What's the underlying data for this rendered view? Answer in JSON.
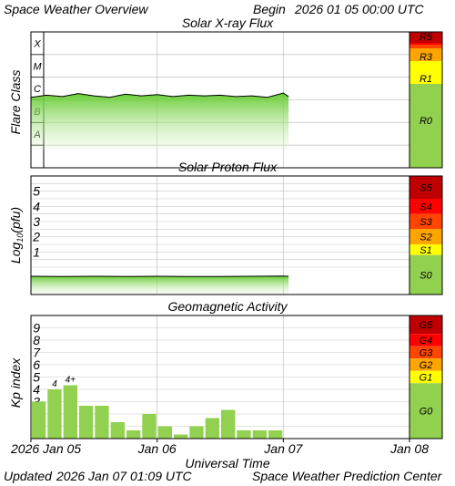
{
  "header": {
    "title": "Space Weather Overview",
    "begin_label": "Begin",
    "begin_time": "2026 01 05 00:00 UTC"
  },
  "footer": {
    "updated_label": "Updated",
    "updated_time": "2026 Jan 07 01:09 UTC",
    "source": "Space Weather Prediction Center"
  },
  "time_axis": {
    "label": "Universal Time",
    "ticks": [
      {
        "x": "2026-01-05",
        "label": "2026 Jan 05"
      },
      {
        "x": "2026-01-06",
        "label": "Jan 06"
      },
      {
        "x": "2026-01-07",
        "label": "Jan 07"
      },
      {
        "x": "2026-01-08",
        "label": "Jan 08"
      }
    ]
  },
  "colors": {
    "green": "#92d050",
    "yellow": "#ffff00",
    "orange": "#ffa500",
    "red_orange": "#ff4500",
    "red": "#ff0000",
    "dark_red": "#c00000",
    "grid": "#c8c8c8"
  },
  "chart_data": [
    {
      "type": "line",
      "title": "Solar X-ray Flux",
      "ylabel": "Flare Class",
      "scale": "log",
      "x_range": [
        "2026-01-05",
        "2026-01-08"
      ],
      "ylim": [
        1e-09,
        0.001
      ],
      "class_labels": [
        "A",
        "B",
        "C",
        "M",
        "X"
      ],
      "x": [
        "2026-01-05 00:00",
        "2026-01-05 03:00",
        "2026-01-05 06:00",
        "2026-01-05 09:00",
        "2026-01-05 12:00",
        "2026-01-05 15:00",
        "2026-01-05 18:00",
        "2026-01-05 21:00",
        "2026-01-06 00:00",
        "2026-01-06 03:00",
        "2026-01-06 06:00",
        "2026-01-06 09:00",
        "2026-01-06 12:00",
        "2026-01-06 15:00",
        "2026-01-06 18:00",
        "2026-01-06 21:00",
        "2026-01-07 00:00",
        "2026-01-07 01:00"
      ],
      "values": [
        1.3e-06,
        1.6e-06,
        1.4e-06,
        1.9e-06,
        1.5e-06,
        1.3e-06,
        1.8e-06,
        1.5e-06,
        1.7e-06,
        1.4e-06,
        1.6e-06,
        1.5e-06,
        1.6e-06,
        1.4e-06,
        1.5e-06,
        1.3e-06,
        2e-06,
        1.4e-06
      ],
      "scale_bar": [
        {
          "label": "R5",
          "color": "#c00000"
        },
        {
          "label": "R3",
          "color": "#ffa500"
        },
        {
          "label": "R1",
          "color": "#ffff00"
        },
        {
          "label": "R0",
          "color": "#92d050"
        }
      ]
    },
    {
      "type": "line",
      "title": "Solar Proton Flux",
      "ylabel": "Log10(pfu)",
      "ylabel_main": "Log",
      "ylabel_sub": "10",
      "ylabel_tail": "(pfu)",
      "scale": "log",
      "x_range": [
        "2026-01-05",
        "2026-01-08"
      ],
      "ylim": [
        -1.8,
        6
      ],
      "yticks": [
        1,
        2,
        3,
        4,
        5
      ],
      "x": [
        "2026-01-05 00:00",
        "2026-01-05 06:00",
        "2026-01-05 12:00",
        "2026-01-05 18:00",
        "2026-01-06 00:00",
        "2026-01-06 06:00",
        "2026-01-06 12:00",
        "2026-01-06 18:00",
        "2026-01-07 00:00",
        "2026-01-07 01:00"
      ],
      "values": [
        -0.6,
        -0.62,
        -0.6,
        -0.61,
        -0.6,
        -0.62,
        -0.61,
        -0.6,
        -0.58,
        -0.6
      ],
      "scale_bar": [
        {
          "label": "S5",
          "color": "#c00000"
        },
        {
          "label": "S4",
          "color": "#ff0000"
        },
        {
          "label": "S3",
          "color": "#ff4500"
        },
        {
          "label": "S2",
          "color": "#ffa500"
        },
        {
          "label": "S1",
          "color": "#ffff00"
        },
        {
          "label": "S0",
          "color": "#92d050"
        }
      ]
    },
    {
      "type": "bar",
      "title": "Geomagnetic Activity",
      "ylabel": "Kp index",
      "x_range": [
        "2026-01-05",
        "2026-01-08"
      ],
      "ylim": [
        0,
        10
      ],
      "yticks": [
        1,
        2,
        3,
        4,
        5,
        6,
        7,
        8,
        9
      ],
      "x": [
        "2026-01-05 00:00",
        "2026-01-05 03:00",
        "2026-01-05 06:00",
        "2026-01-05 09:00",
        "2026-01-05 12:00",
        "2026-01-05 15:00",
        "2026-01-05 18:00",
        "2026-01-05 21:00",
        "2026-01-06 00:00",
        "2026-01-06 03:00",
        "2026-01-06 06:00",
        "2026-01-06 09:00",
        "2026-01-06 12:00",
        "2026-01-06 15:00",
        "2026-01-06 18:00",
        "2026-01-06 21:00"
      ],
      "values": [
        3.0,
        4.0,
        4.33,
        2.67,
        2.67,
        1.33,
        0.67,
        2.0,
        1.0,
        0.33,
        1.0,
        1.67,
        2.33,
        0.67,
        0.67,
        0.67
      ],
      "data_labels": [
        {
          "index": 1,
          "label": "4"
        },
        {
          "index": 2,
          "label": "4+"
        }
      ],
      "scale_bar": [
        {
          "label": "G5",
          "color": "#c00000"
        },
        {
          "label": "G4",
          "color": "#ff0000"
        },
        {
          "label": "G3",
          "color": "#ff4500"
        },
        {
          "label": "G2",
          "color": "#ffa500"
        },
        {
          "label": "G1",
          "color": "#ffff00"
        },
        {
          "label": "G0",
          "color": "#92d050"
        }
      ]
    }
  ]
}
